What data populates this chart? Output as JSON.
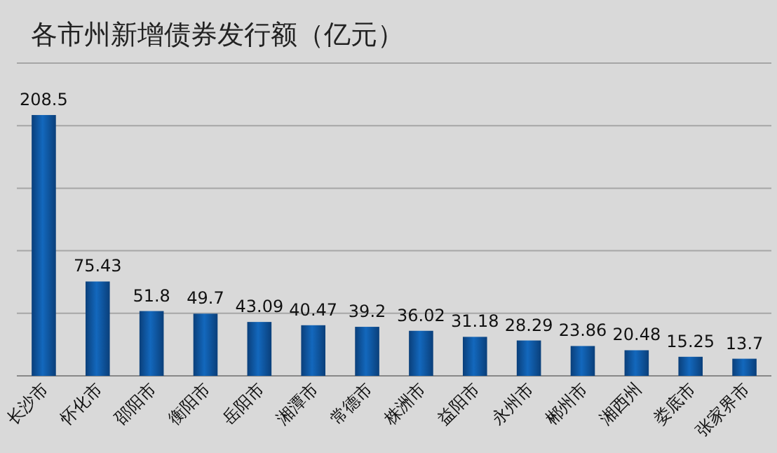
{
  "chart_data": {
    "type": "bar",
    "title": "各市州新增债券发行额（亿元）",
    "categories": [
      "长沙市",
      "怀化市",
      "邵阳市",
      "衡阳市",
      "岳阳市",
      "湘潭市",
      "常德市",
      "株洲市",
      "益阳市",
      "永州市",
      "郴州市",
      "湘西州",
      "娄底市",
      "张家界市"
    ],
    "values": [
      208.5,
      75.43,
      51.8,
      49.7,
      43.09,
      40.47,
      39.2,
      36.02,
      31.18,
      28.29,
      23.86,
      20.48,
      15.25,
      13.7
    ],
    "color": "#1368bd",
    "ylim": [
      0,
      250
    ],
    "yticks": [
      {
        "value": 0,
        "label": null
      },
      {
        "value": 50,
        "label": null
      },
      {
        "value": 100,
        "label": null
      },
      {
        "value": 150,
        "label": null
      },
      {
        "value": 200,
        "label": null
      },
      {
        "value": 250,
        "label": null
      }
    ],
    "tick_labels": "x",
    "grid": "y",
    "data_labels": true
  }
}
